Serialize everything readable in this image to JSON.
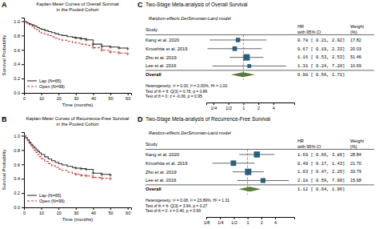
{
  "chart_data": [
    {
      "type": "line",
      "panel_label": "A",
      "title": "Kaplan-Meier Curves of Overall Survival\nin the Pooled Cohort",
      "xlabel": "Time (months)",
      "ylabel": "Survival Probability",
      "x": [
        0,
        1,
        2,
        3,
        4,
        5,
        6,
        7,
        8,
        9,
        10,
        12,
        14,
        16,
        18,
        20,
        22,
        25,
        28,
        30,
        33,
        36,
        40,
        45,
        50,
        55,
        60
      ],
      "series": [
        {
          "name": "Lap (N=65)",
          "color": "#333333",
          "line_style": "solid",
          "values": [
            1.0,
            0.985,
            0.975,
            0.965,
            0.955,
            0.945,
            0.935,
            0.925,
            0.91,
            0.9,
            0.887,
            0.87,
            0.855,
            0.84,
            0.825,
            0.81,
            0.8,
            0.785,
            0.775,
            0.767,
            0.755,
            0.74,
            0.68,
            0.65,
            0.64,
            0.625,
            0.615
          ],
          "censored": [
            30,
            33,
            36,
            40,
            45,
            50,
            55,
            60
          ]
        },
        {
          "name": "Open (N=99)",
          "color": "#cc3333",
          "line_style": "dashed",
          "values": [
            1.0,
            0.98,
            0.965,
            0.95,
            0.935,
            0.918,
            0.9,
            0.885,
            0.868,
            0.852,
            0.835,
            0.815,
            0.798,
            0.78,
            0.763,
            0.748,
            0.735,
            0.718,
            0.705,
            0.695,
            0.68,
            0.665,
            0.63,
            0.595,
            0.57,
            0.555,
            0.545
          ],
          "censored": [
            40,
            45,
            50,
            55,
            60
          ]
        }
      ],
      "xlim": [
        0,
        62
      ],
      "ylim": [
        0.0,
        1.05
      ],
      "xticks": [
        0,
        10,
        20,
        30,
        40,
        50,
        60
      ],
      "yticks": [
        {
          "value": 0.0,
          "label": "0.0"
        },
        0.2,
        0.4,
        0.6,
        0.8,
        {
          "value": 1.0,
          "label": "1.0"
        }
      ],
      "legend": "lower left"
    },
    {
      "type": "line",
      "panel_label": "B",
      "title": "Kaplan-Meier Curves of Recurrence-Free Survival\nin the Pooled Cohort",
      "xlabel": "Time (months)",
      "ylabel": "Survival Probability",
      "x": [
        0,
        1,
        2,
        3,
        4,
        5,
        6,
        7,
        8,
        9,
        10,
        12,
        14,
        16,
        18,
        20,
        22,
        25,
        28,
        30,
        33,
        36,
        40,
        45,
        50
      ],
      "series": [
        {
          "name": "Lap (N=65)",
          "color": "#333333",
          "line_style": "solid",
          "values": [
            1.0,
            0.97,
            0.94,
            0.91,
            0.88,
            0.855,
            0.83,
            0.805,
            0.78,
            0.76,
            0.738,
            0.705,
            0.675,
            0.65,
            0.628,
            0.608,
            0.592,
            0.572,
            0.555,
            0.548,
            0.54,
            0.53,
            0.478,
            0.46,
            0.45
          ],
          "censored": [
            30,
            33,
            36,
            40,
            45,
            50
          ]
        },
        {
          "name": "Open (N=99)",
          "color": "#cc3333",
          "line_style": "dashed",
          "values": [
            1.0,
            0.965,
            0.93,
            0.895,
            0.86,
            0.828,
            0.795,
            0.765,
            0.735,
            0.708,
            0.68,
            0.643,
            0.61,
            0.582,
            0.558,
            0.535,
            0.516,
            0.492,
            0.472,
            0.46,
            0.448,
            0.438,
            0.418,
            0.405,
            0.4
          ],
          "censored": [
            30,
            33,
            36,
            40,
            45,
            50
          ]
        }
      ],
      "xlim": [
        0,
        62
      ],
      "ylim": [
        0.0,
        1.05
      ],
      "xticks": [
        0,
        10,
        20,
        30,
        40,
        50,
        60
      ],
      "yticks": [
        {
          "value": 0.0,
          "label": "0.0"
        },
        0.2,
        0.4,
        0.6,
        0.8,
        {
          "value": 1.0,
          "label": "1.0"
        }
      ],
      "legend": "lower left"
    },
    {
      "type": "forest",
      "panel_label": "C",
      "title": "Two-Stage Meta-analysis of Overall Survival",
      "subtitle": "Random-effects DerSimonian-Laird model",
      "ylabel": "Study",
      "columns": [
        "HR",
        "with 95% CI",
        "Weight",
        "(%)"
      ],
      "categories": [
        "Kang et al. 2020",
        "Kinoshita et al. 2019",
        "Zhu et al. 2019",
        "Lee et al. 2016"
      ],
      "values": [
        0.78,
        0.67,
        1.16,
        1.31
      ],
      "ci_low": [
        0.21,
        0.19,
        0.53,
        0.24
      ],
      "ci_high": [
        2.92,
        2.33,
        2.53,
        7.2
      ],
      "hr_labels": [
        "0.78 [ 0.21, 2.92]",
        "0.67 [ 0.19, 2.33]",
        "1.16 [ 0.53, 2.53]",
        "1.31 [ 0.24, 7.20]"
      ],
      "weights": [
        17.82,
        20.03,
        51.46,
        10.69
      ],
      "weight_labels": [
        "17.82",
        "20.03",
        "51.46",
        "10.69"
      ],
      "overall": {
        "name": "Overall",
        "value": 0.98,
        "ci_low": 0.56,
        "ci_high": 1.71,
        "label": "0.98 [ 0.56, 1.71]",
        "color": "#5a7a3a"
      },
      "notes": [
        "Heterogeneity: τ² = 0.00, I² = 0.00%, H² = 1.00",
        "Test of θᵢ = θ: Q(3) = 0.78, p = 0.86",
        "Test of θ = 0: z = -0.06, p = 0.95"
      ],
      "ref_line": 1.0,
      "log": "x",
      "xlim": [
        0.18,
        10.5
      ],
      "xticks": [
        {
          "value": 0.25,
          "label": "1/4"
        },
        {
          "value": 0.5,
          "label": "1/2"
        },
        1,
        2,
        4
      ],
      "color": "#2d5f7c"
    },
    {
      "type": "forest",
      "panel_label": "D",
      "title": "Two-Stage Meta-analysis of Recurrence-Free Survival",
      "subtitle": "Random-effects DerSimonian-Laird model",
      "ylabel": "Study",
      "columns": [
        "HR",
        "with 95% CI",
        "Weight",
        "(%)"
      ],
      "categories": [
        "Kang et al. 2020",
        "Kinoshita et al. 2019",
        "Zhu et al. 2019",
        "Lee et al. 2016"
      ],
      "values": [
        1.6,
        0.49,
        1.03,
        2.18
      ],
      "ci_low": [
        0.66,
        0.17,
        0.47,
        0.59
      ],
      "ci_high": [
        3.86,
        1.43,
        2.26,
        7.99
      ],
      "hr_labels": [
        "1.60 [ 0.66, 3.86]",
        "0.49 [ 0.17, 1.43]",
        "1.03 [ 0.47, 2.26]",
        "2.18 [ 0.59, 7.99]"
      ],
      "weights": [
        28.84,
        21.7,
        33.79,
        15.68
      ],
      "weight_labels": [
        "28.84",
        "21.70",
        "33.79",
        "15.68"
      ],
      "overall": {
        "name": "Overall",
        "value": 1.12,
        "ci_low": 0.64,
        "ci_high": 1.96,
        "label": "1.12 [ 0.64, 1.96]",
        "color": "#5a7a3a"
      },
      "notes": [
        "Heterogeneity: τ² = 0.08, I² = 23.89%, H² = 1.31",
        "Test of θᵢ = θ: Q(3) = 3.94, p = 0.27",
        "Test of θ = 0: z = 0.40, p = 0.69"
      ],
      "ref_line": 1.0,
      "log": "x",
      "xlim": [
        0.125,
        10.5
      ],
      "xticks": [
        {
          "value": 0.125,
          "label": "1/8"
        },
        {
          "value": 0.25,
          "label": "1/4"
        },
        {
          "value": 0.5,
          "label": "1/2"
        },
        1,
        2,
        4
      ],
      "color": "#2d5f7c"
    }
  ]
}
